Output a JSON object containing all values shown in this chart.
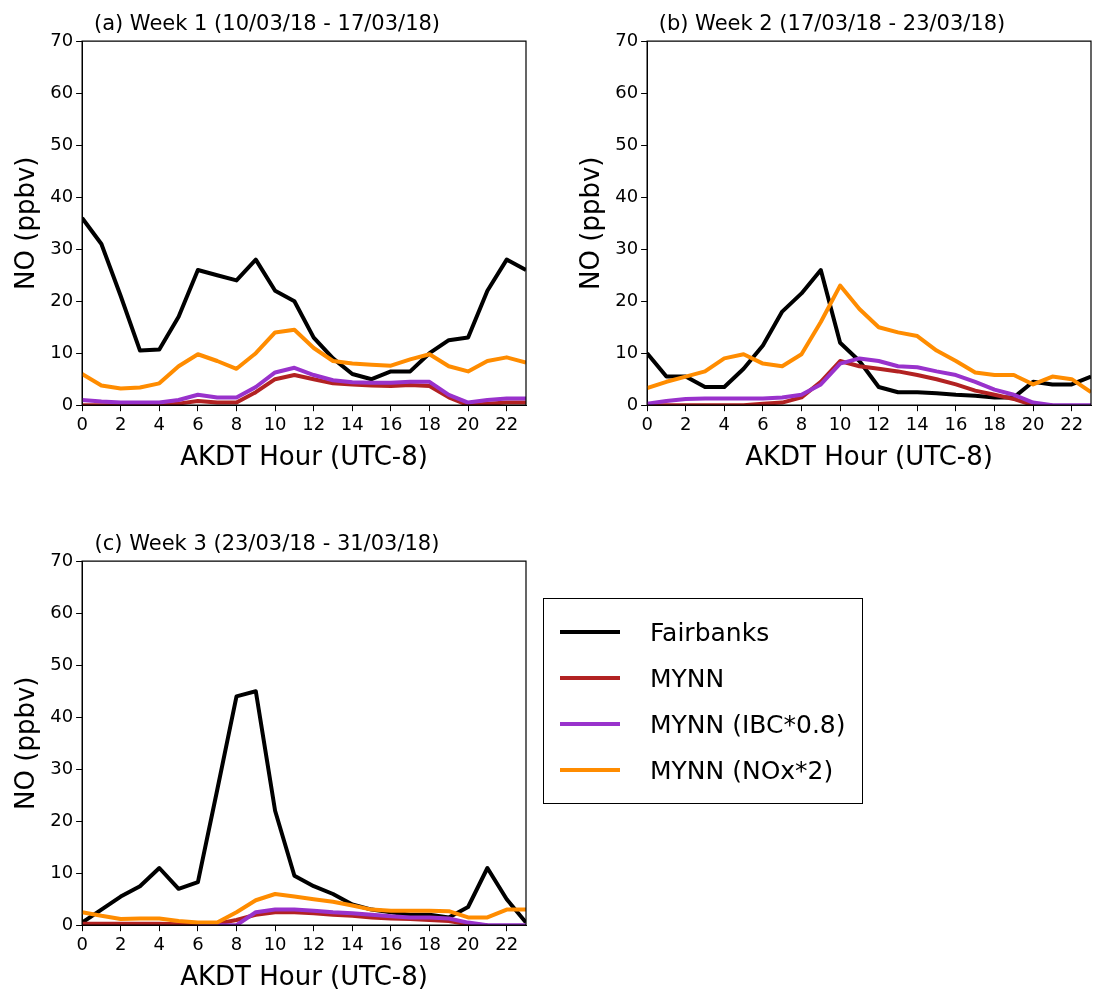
{
  "chart_data": [
    {
      "type": "line",
      "title": "(a) Week 1 (10/03/18 - 17/03/18)",
      "xlabel": "AKDT Hour (UTC-8)",
      "ylabel": "NO (ppbv)",
      "x": [
        0,
        1,
        2,
        3,
        4,
        5,
        6,
        7,
        8,
        9,
        10,
        11,
        12,
        13,
        14,
        15,
        16,
        17,
        18,
        19,
        20,
        21,
        22,
        23
      ],
      "xlim": [
        0,
        23
      ],
      "xticks": [
        0,
        2,
        4,
        6,
        8,
        10,
        12,
        14,
        16,
        18,
        20,
        22
      ],
      "ylim": [
        0,
        70
      ],
      "yticks": [
        0,
        10,
        20,
        30,
        40,
        50,
        60,
        70
      ],
      "series": [
        {
          "color": "#000000",
          "values": [
            36,
            31,
            21,
            10.5,
            10.7,
            17,
            26,
            25,
            24,
            28,
            22,
            20,
            13,
            9,
            6,
            5,
            6.5,
            6.5,
            10,
            12.5,
            13,
            22,
            28,
            26
          ]
        },
        {
          "color": "#b22222",
          "values": [
            0,
            0,
            0,
            0,
            0,
            0.3,
            0.8,
            0.5,
            0.5,
            2.5,
            5,
            5.8,
            5,
            4.2,
            4,
            3.8,
            3.7,
            3.9,
            3.7,
            1.5,
            0,
            0.3,
            0.5,
            0.5
          ]
        },
        {
          "color": "#9932cc",
          "values": [
            1,
            0.7,
            0.5,
            0.5,
            0.5,
            1,
            2,
            1.5,
            1.5,
            3.5,
            6.3,
            7.2,
            5.8,
            4.8,
            4.4,
            4.3,
            4.3,
            4.5,
            4.5,
            2,
            0.5,
            1,
            1.3,
            1.3
          ]
        },
        {
          "color": "#ff8c00",
          "values": [
            6,
            3.8,
            3.2,
            3.4,
            4.2,
            7.5,
            9.8,
            8.5,
            7,
            10,
            14,
            14.5,
            11,
            8.5,
            8,
            7.8,
            7.6,
            8.8,
            9.8,
            7.5,
            6.5,
            8.5,
            9.2,
            8.2
          ]
        }
      ]
    },
    {
      "type": "line",
      "title": "(b) Week 2 (17/03/18 - 23/03/18)",
      "xlabel": "AKDT Hour (UTC-8)",
      "ylabel": "NO (ppbv)",
      "x": [
        0,
        1,
        2,
        3,
        4,
        5,
        6,
        7,
        8,
        9,
        10,
        11,
        12,
        13,
        14,
        15,
        16,
        17,
        18,
        19,
        20,
        21,
        22,
        23
      ],
      "xlim": [
        0,
        23
      ],
      "xticks": [
        0,
        2,
        4,
        6,
        8,
        10,
        12,
        14,
        16,
        18,
        20,
        22
      ],
      "ylim": [
        0,
        70
      ],
      "yticks": [
        0,
        10,
        20,
        30,
        40,
        50,
        60,
        70
      ],
      "series": [
        {
          "color": "#000000",
          "values": [
            10,
            5.5,
            5.5,
            3.5,
            3.5,
            7,
            11.5,
            18,
            21.5,
            26,
            12,
            8.5,
            3.5,
            2.5,
            2.5,
            2.3,
            2,
            1.8,
            1.5,
            1.5,
            4.5,
            4,
            4,
            5.5
          ]
        },
        {
          "color": "#b22222",
          "values": [
            0,
            0,
            0,
            0,
            0,
            0,
            0.3,
            0.5,
            1.5,
            4.5,
            8.5,
            7.5,
            7,
            6.5,
            5.8,
            5,
            4,
            2.8,
            2,
            1.2,
            0,
            0,
            null,
            null
          ]
        },
        {
          "color": "#9932cc",
          "values": [
            0.3,
            0.8,
            1.2,
            1.3,
            1.3,
            1.3,
            1.3,
            1.5,
            2,
            4,
            8,
            9,
            8.5,
            7.5,
            7.3,
            6.5,
            5.8,
            4.5,
            3,
            2,
            0.5,
            0,
            0,
            0
          ]
        },
        {
          "color": "#ff8c00",
          "values": [
            3.3,
            4.5,
            5.5,
            6.5,
            9,
            9.8,
            8,
            7.5,
            9.8,
            16,
            23,
            18.5,
            15,
            14,
            13.3,
            10.5,
            8.5,
            6.3,
            5.8,
            5.8,
            4,
            5.5,
            5,
            2.5
          ]
        }
      ]
    },
    {
      "type": "line",
      "title": "(c) Week 3 (23/03/18 - 31/03/18)",
      "xlabel": "AKDT Hour (UTC-8)",
      "ylabel": "NO (ppbv)",
      "legend": "right",
      "x": [
        0,
        1,
        2,
        3,
        4,
        5,
        6,
        7,
        8,
        9,
        10,
        11,
        12,
        13,
        14,
        15,
        16,
        17,
        18,
        19,
        20,
        21,
        22,
        23
      ],
      "xlim": [
        0,
        23
      ],
      "xticks": [
        0,
        2,
        4,
        6,
        8,
        10,
        12,
        14,
        16,
        18,
        20,
        22
      ],
      "ylim": [
        0,
        70
      ],
      "yticks": [
        0,
        10,
        20,
        30,
        40,
        50,
        60,
        70
      ],
      "series": [
        {
          "name": "Fairbanks",
          "color": "#000000",
          "values": [
            0.5,
            3,
            5.5,
            7.5,
            11,
            7,
            8.3,
            26,
            44,
            45,
            22,
            9.5,
            7.5,
            6,
            4,
            3,
            2.5,
            2,
            2,
            1.5,
            3.5,
            11,
            5,
            0.5
          ]
        },
        {
          "name": "MYNN",
          "color": "#b22222",
          "values": [
            0.3,
            0.3,
            0.3,
            0.3,
            0.3,
            0.2,
            0.2,
            0.3,
            1,
            2,
            2.5,
            2.5,
            2.3,
            2,
            1.8,
            1.5,
            1.3,
            1.2,
            1,
            0.8,
            0.2,
            0,
            null,
            null
          ]
        },
        {
          "name": "MYNN (IBC*0.8)",
          "color": "#9932cc",
          "values": [
            null,
            null,
            null,
            null,
            null,
            null,
            0,
            0,
            0,
            2.5,
            3,
            3,
            2.8,
            2.5,
            2.3,
            2,
            1.7,
            1.5,
            1.5,
            1.3,
            0.5,
            0,
            0,
            0
          ]
        },
        {
          "name": "MYNN (NOx*2)",
          "color": "#ff8c00",
          "values": [
            2.5,
            1.8,
            1.2,
            1.3,
            1.3,
            0.8,
            0.5,
            0.5,
            2.5,
            4.8,
            6,
            5.5,
            5,
            4.5,
            3.8,
            3,
            2.8,
            2.8,
            2.8,
            2.7,
            1.5,
            1.5,
            3,
            3
          ]
        }
      ]
    }
  ]
}
